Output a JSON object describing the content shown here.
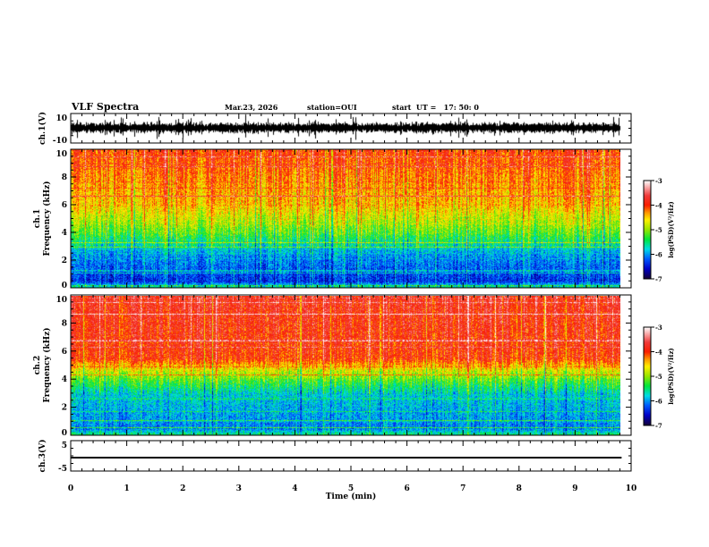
{
  "header": {
    "title": "VLF Spectra",
    "date": "Mar.23, 2026",
    "station": "station=OUI",
    "start": "start  UT =   17: 50: 0"
  },
  "colors": {
    "axis": "#000000",
    "background": "#ffffff"
  },
  "chart_data": [
    {
      "type": "line",
      "name": "ch1-waveform",
      "ylabel": "ch.1(V)",
      "ylim": [
        -10,
        10
      ],
      "yticks": [
        "10",
        "-10"
      ],
      "baseline": 2,
      "xlim": [
        0,
        10
      ]
    },
    {
      "type": "heatmap",
      "name": "ch1-spectrogram",
      "ylabel": "ch.1\nFrequency (kHz)",
      "ylabel_lines": [
        "ch.1",
        "Frequency (kHz)"
      ],
      "ylim": [
        0,
        10
      ],
      "yticks": [
        "0",
        "2",
        "4",
        "6",
        "8",
        "10"
      ],
      "xlim": [
        0,
        9.83
      ],
      "profile_khz": [
        0,
        0.5,
        2.5,
        4,
        6,
        10
      ],
      "profile_logpsd": [
        -5.5,
        -6.4,
        -6.0,
        -5.2,
        -4.5,
        -4.0
      ],
      "colorbar": {
        "label": "log(PSD)(V²/Hz)",
        "range": [
          -7,
          -3
        ],
        "ticks": [
          "-3",
          "-4",
          "-5",
          "-6",
          "-7"
        ]
      }
    },
    {
      "type": "heatmap",
      "name": "ch2-spectrogram",
      "ylabel_lines": [
        "ch.2",
        "Frequency (kHz)"
      ],
      "ylim": [
        0,
        10
      ],
      "yticks": [
        "0",
        "2",
        "4",
        "6",
        "8",
        "10"
      ],
      "xlim": [
        0,
        9.83
      ],
      "profile_khz": [
        0,
        0.5,
        3,
        4.5,
        5.5,
        10
      ],
      "profile_logpsd": [
        -5.4,
        -6.1,
        -5.8,
        -4.9,
        -4.0,
        -3.8
      ],
      "colorbar": {
        "label": "log(PSD)(V²/Hz)",
        "range": [
          -7,
          -3
        ],
        "ticks": [
          "-3",
          "-4",
          "-5",
          "-6",
          "-7"
        ]
      }
    },
    {
      "type": "line",
      "name": "ch3-waveform",
      "ylabel": "ch.3(V)",
      "ylim": [
        -5,
        5
      ],
      "yticks": [
        "5",
        "-5"
      ],
      "value": 0,
      "xlim": [
        0,
        9.83
      ]
    }
  ],
  "xaxis": {
    "label": "Time (min)",
    "ticks": [
      "0",
      "1",
      "2",
      "3",
      "4",
      "5",
      "6",
      "7",
      "8",
      "9",
      "10"
    ],
    "range": [
      0,
      10
    ]
  }
}
